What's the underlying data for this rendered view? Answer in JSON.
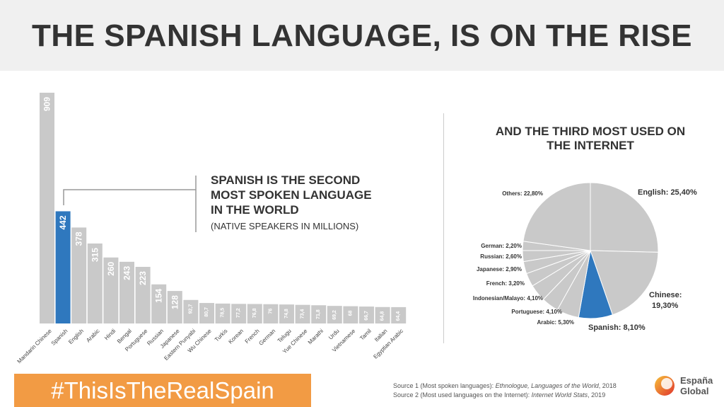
{
  "title": "THE SPANISH LANGUAGE, IS ON THE RISE",
  "callout": {
    "line1": "SPANISH IS THE SECOND",
    "line2": "MOST SPOKEN LANGUAGE",
    "line3": "IN THE WORLD",
    "sub": "(NATIVE SPEAKERS IN MILLIONS)"
  },
  "pie_heading": {
    "line1": "AND THE THIRD MOST USED ON",
    "line2": "THE INTERNET"
  },
  "chart_data": [
    {
      "type": "bar",
      "categories": [
        "Mandarin Chinese",
        "Spanish",
        "English",
        "Arabic",
        "Hindi",
        "Bengal",
        "Portuguese",
        "Russian",
        "Japanese",
        "Eastern Punyabi",
        "Wu Chinese",
        "Turkis",
        "Korean",
        "French",
        "German",
        "Telugu",
        "Yue Chinese",
        "Marathi",
        "Urdu",
        "Vietnamese",
        "Tamil",
        "Italian",
        "Egyptian Arabic"
      ],
      "values": [
        909,
        442,
        378,
        315,
        260,
        243,
        223,
        154,
        128,
        92.7,
        80.7,
        78.5,
        77.2,
        76.8,
        76,
        74.8,
        73.4,
        71.8,
        69.2,
        68,
        66.7,
        64.8,
        64.4
      ],
      "value_labels": [
        "909",
        "442",
        "378",
        "315",
        "260",
        "243",
        "223",
        "154",
        "128",
        "92,7",
        "80,7",
        "78,5",
        "77,2",
        "76,8",
        "76",
        "74,8",
        "73,4",
        "71,8",
        "69,2",
        "68",
        "66,7",
        "64,8",
        "64,4"
      ],
      "highlight": "Spanish",
      "colors": {
        "default": "#c9c9c9",
        "highlight": "#2f78be"
      }
    },
    {
      "type": "pie",
      "slices": [
        {
          "label": "English: 25,40%",
          "value": 25.4
        },
        {
          "label": "Chinese: 19,30%",
          "value": 19.3
        },
        {
          "label": "Spanish: 8,10%",
          "value": 8.1
        },
        {
          "label": "Arabic: 5,30%",
          "value": 5.3
        },
        {
          "label": "Portuguese: 4,10%",
          "value": 4.1
        },
        {
          "label": "Indonesian/Malayo: 4,10%",
          "value": 4.1
        },
        {
          "label": "French: 3,20%",
          "value": 3.2
        },
        {
          "label": "Japanese: 2,90%",
          "value": 2.9
        },
        {
          "label": "Russian: 2,60%",
          "value": 2.6
        },
        {
          "label": "German: 2,20%",
          "value": 2.2
        },
        {
          "label": "Others: 22,80%",
          "value": 22.8
        }
      ],
      "highlight": "Spanish: 8,10%",
      "colors": {
        "default": "#c9c9c9",
        "highlight": "#2f78be",
        "stroke": "#ffffff"
      }
    }
  ],
  "hashtag": "#ThisIsTheRealSpain",
  "sources": {
    "s1_prefix": "Source 1 (Most spoken languages): ",
    "s1_title": "Ethnologue, Languages of the World",
    "s1_suffix": ", 2018",
    "s2_prefix": "Source 2 (Most used languages on the Internet): ",
    "s2_title": "Internet World Stats",
    "s2_suffix": ", 2019"
  },
  "logo": {
    "line1": "España",
    "line2": "Global"
  }
}
